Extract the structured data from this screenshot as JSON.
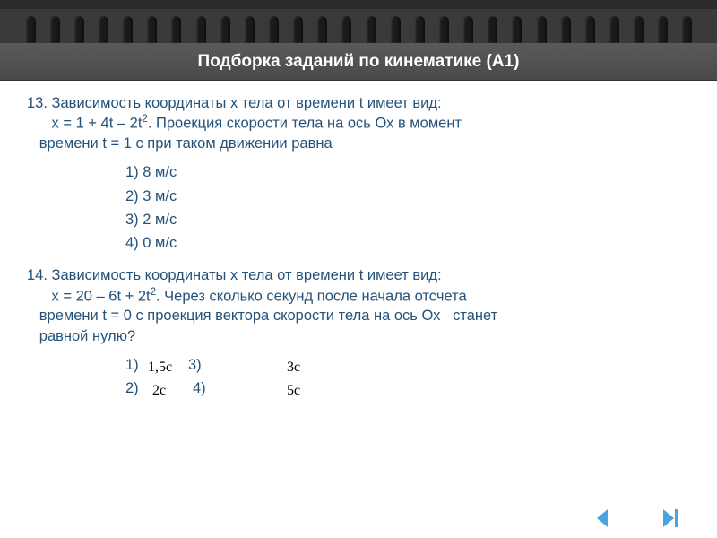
{
  "title": "Подборка заданий по кинематике (А1)",
  "q13": {
    "num": "13.",
    "line1": "Зависимость координаты х тела от времени t имеет вид:",
    "line2_pre": "х = 1 + 4t – 2t",
    "line2_sup": "2",
    "line2_post": ". Проекция скорости тела на ось Ох в момент",
    "line3": "времени t = 1 с при таком движении равна",
    "opts": [
      "1) 8 м/с",
      "2) 3 м/с",
      "3) 2 м/с",
      "4) 0 м/с"
    ]
  },
  "q14": {
    "num": "14.",
    "line1": "Зависимость координаты х тела от времени t имеет вид:",
    "line2_pre": "х = 20 – 6t + 2t",
    "line2_sup": "2",
    "line2_post": ". Через сколько секунд после начала отсчета",
    "line3": "времени t = 0 с проекция вектора скорости тела на ось Ох   станет",
    "line4": "равной нулю?",
    "opt1": "1)",
    "opt2": "2)",
    "opt3": "3)",
    "opt4": "4)",
    "val1": "1,5c",
    "val2": "2c",
    "val3": "3c",
    "val4": "5c"
  },
  "colors": {
    "text": "#24527a",
    "title_bg": "#4a4a4a",
    "title_fg": "#ffffff",
    "nav": "#4aa3e0",
    "math": "#000000"
  },
  "rings": 28
}
